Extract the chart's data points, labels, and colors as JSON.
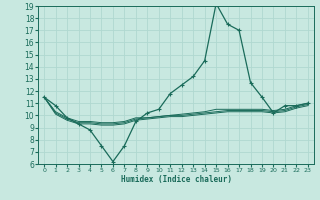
{
  "xlabel": "Humidex (Indice chaleur)",
  "xlim": [
    -0.5,
    23.5
  ],
  "ylim": [
    6,
    19
  ],
  "xticks": [
    0,
    1,
    2,
    3,
    4,
    5,
    6,
    7,
    8,
    9,
    10,
    11,
    12,
    13,
    14,
    15,
    16,
    17,
    18,
    19,
    20,
    21,
    22,
    23
  ],
  "yticks": [
    6,
    7,
    8,
    9,
    10,
    11,
    12,
    13,
    14,
    15,
    16,
    17,
    18,
    19
  ],
  "bg_color": "#c8e8e0",
  "line_color": "#1a6b5a",
  "grid_color": "#b0d8d0",
  "curves": [
    {
      "x": [
        0,
        1,
        2,
        3,
        4,
        5,
        6,
        7,
        8,
        9,
        10,
        11,
        12,
        13,
        14,
        15,
        16,
        17,
        18,
        19,
        20,
        21,
        22,
        23
      ],
      "y": [
        11.5,
        10.8,
        9.8,
        9.3,
        8.8,
        7.5,
        6.2,
        7.5,
        9.5,
        10.2,
        10.5,
        11.8,
        12.5,
        13.2,
        14.5,
        19.2,
        17.5,
        17.0,
        12.7,
        11.5,
        10.2,
        10.8,
        10.8,
        11.0
      ],
      "marker": true
    },
    {
      "x": [
        0,
        1,
        2,
        3,
        4,
        5,
        6,
        7,
        8,
        9,
        10,
        11,
        12,
        13,
        14,
        15,
        16,
        17,
        18,
        19,
        20,
        21,
        22,
        23
      ],
      "y": [
        11.5,
        10.3,
        9.8,
        9.5,
        9.5,
        9.4,
        9.4,
        9.5,
        9.8,
        9.8,
        9.9,
        10.0,
        10.1,
        10.2,
        10.3,
        10.5,
        10.5,
        10.5,
        10.5,
        10.5,
        10.4,
        10.5,
        10.8,
        11.0
      ],
      "marker": false
    },
    {
      "x": [
        0,
        1,
        2,
        3,
        4,
        5,
        6,
        7,
        8,
        9,
        10,
        11,
        12,
        13,
        14,
        15,
        16,
        17,
        18,
        19,
        20,
        21,
        22,
        23
      ],
      "y": [
        11.5,
        10.2,
        9.7,
        9.4,
        9.4,
        9.3,
        9.3,
        9.4,
        9.7,
        9.8,
        9.9,
        10.0,
        10.0,
        10.1,
        10.2,
        10.3,
        10.4,
        10.4,
        10.4,
        10.4,
        10.3,
        10.4,
        10.7,
        10.9
      ],
      "marker": false
    },
    {
      "x": [
        0,
        1,
        2,
        3,
        4,
        5,
        6,
        7,
        8,
        9,
        10,
        11,
        12,
        13,
        14,
        15,
        16,
        17,
        18,
        19,
        20,
        21,
        22,
        23
      ],
      "y": [
        11.5,
        10.1,
        9.6,
        9.3,
        9.3,
        9.2,
        9.2,
        9.3,
        9.6,
        9.7,
        9.8,
        9.9,
        9.9,
        10.0,
        10.1,
        10.2,
        10.3,
        10.3,
        10.3,
        10.3,
        10.2,
        10.3,
        10.6,
        10.8
      ],
      "marker": false
    }
  ]
}
